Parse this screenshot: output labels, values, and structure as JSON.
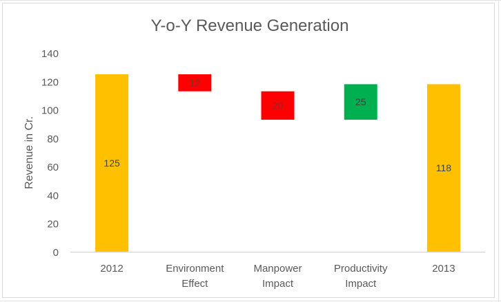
{
  "chart_data": {
    "type": "bar",
    "subtype": "waterfall",
    "title": "Y-o-Y Revenue Generation",
    "xlabel": "",
    "ylabel": "Revenue in Cr.",
    "ylim": [
      0,
      140
    ],
    "yticks": [
      0,
      20,
      40,
      60,
      80,
      100,
      120,
      140
    ],
    "grid": false,
    "legend": "none",
    "categories": [
      "2012",
      "Environment Effect",
      "Manpower Impact",
      "Productivity Impact",
      "2013"
    ],
    "category_lines": [
      [
        "2012"
      ],
      [
        "Environment",
        "Effect"
      ],
      [
        "Manpower",
        "Impact"
      ],
      [
        "Productivity",
        "Impact"
      ],
      [
        "2013"
      ]
    ],
    "bars": [
      {
        "category": "2012",
        "kind": "total",
        "base": 0,
        "value": 125,
        "label": "125",
        "color": "#FFC000"
      },
      {
        "category": "Environment Effect",
        "kind": "decrease",
        "base": 113,
        "value": 12,
        "label": "12",
        "color": "#FF0000"
      },
      {
        "category": "Manpower Impact",
        "kind": "decrease",
        "base": 93,
        "value": 20,
        "label": "20",
        "color": "#FF0000"
      },
      {
        "category": "Productivity Impact",
        "kind": "increase",
        "base": 93,
        "value": 25,
        "label": "25",
        "color": "#00B050"
      },
      {
        "category": "2013",
        "kind": "total",
        "base": 0,
        "value": 118,
        "label": "118",
        "color": "#FFC000"
      }
    ]
  },
  "colors": {
    "total": "#FFC000",
    "decrease": "#FF0000",
    "increase": "#00B050",
    "text": "#595959",
    "axis": "#d9d9d9"
  }
}
